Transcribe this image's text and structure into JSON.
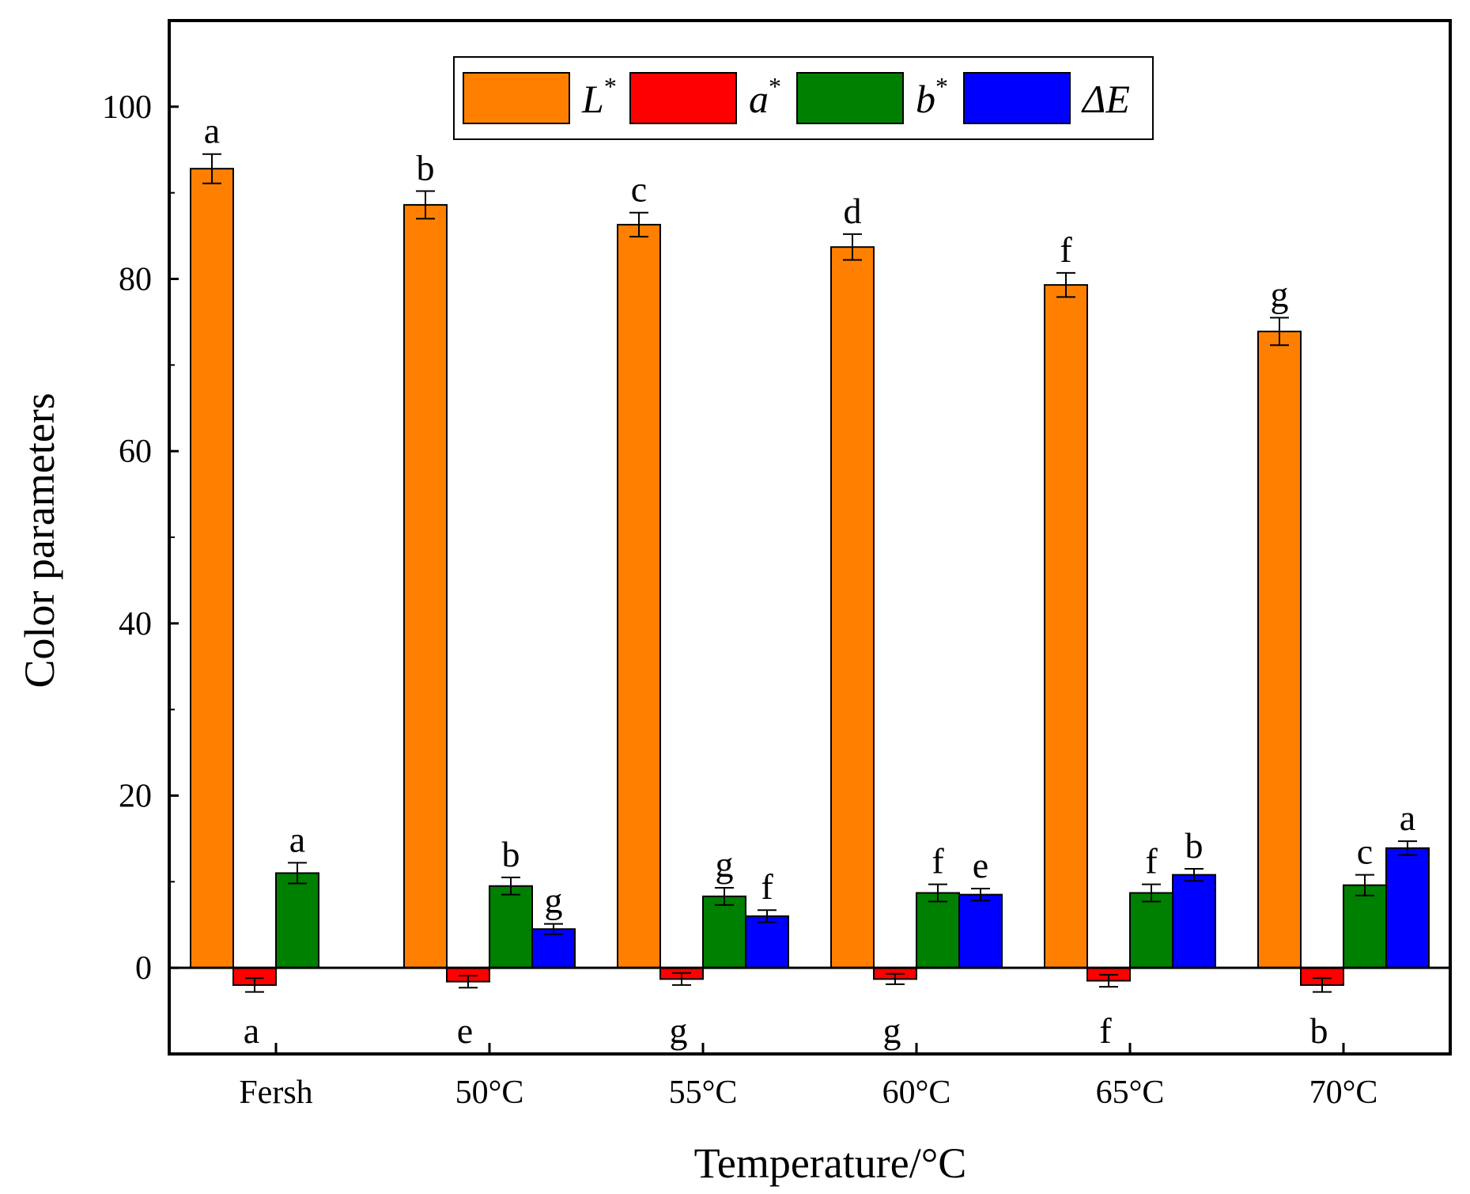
{
  "chart_data": {
    "type": "bar",
    "xlabel": "Temperature/°C",
    "ylabel": "Color parameters",
    "ylim": [
      -10,
      110
    ],
    "yticks": [
      0,
      20,
      40,
      60,
      80,
      100
    ],
    "categories": [
      "Fersh",
      "50°C",
      "55°C",
      "60°C",
      "65°C",
      "70°C"
    ],
    "legend_position": "top-center",
    "series": [
      {
        "name": "L",
        "superscript": "*",
        "color": "#FF8000",
        "values": [
          92.8,
          88.6,
          86.3,
          83.7,
          79.3,
          73.9
        ],
        "errors": [
          1.7,
          1.6,
          1.4,
          1.5,
          1.4,
          1.6
        ],
        "labels": [
          "a",
          "b",
          "c",
          "d",
          "f",
          "g"
        ]
      },
      {
        "name": "a",
        "superscript": "*",
        "color": "#FF0000",
        "values": [
          -2.0,
          -1.6,
          -1.3,
          -1.3,
          -1.5,
          -2.0
        ],
        "errors": [
          0.8,
          0.7,
          0.7,
          0.6,
          0.7,
          0.8
        ],
        "labels": [
          "a",
          "e",
          "g",
          "g",
          "f",
          "b"
        ]
      },
      {
        "name": "b",
        "superscript": "*",
        "color": "#008000",
        "values": [
          11.0,
          9.5,
          8.3,
          8.7,
          8.7,
          9.6
        ],
        "errors": [
          1.2,
          1.0,
          1.0,
          1.0,
          1.0,
          1.2
        ],
        "labels": [
          "a",
          "b",
          "g",
          "f",
          "f",
          "c"
        ]
      },
      {
        "name": "ΔE",
        "superscript": "",
        "color": "#0000FF",
        "values": [
          null,
          4.5,
          6.0,
          8.5,
          10.8,
          13.9
        ],
        "errors": [
          null,
          0.6,
          0.7,
          0.7,
          0.7,
          0.8
        ],
        "labels": [
          null,
          "g",
          "f",
          "e",
          "b",
          "a"
        ]
      }
    ]
  }
}
